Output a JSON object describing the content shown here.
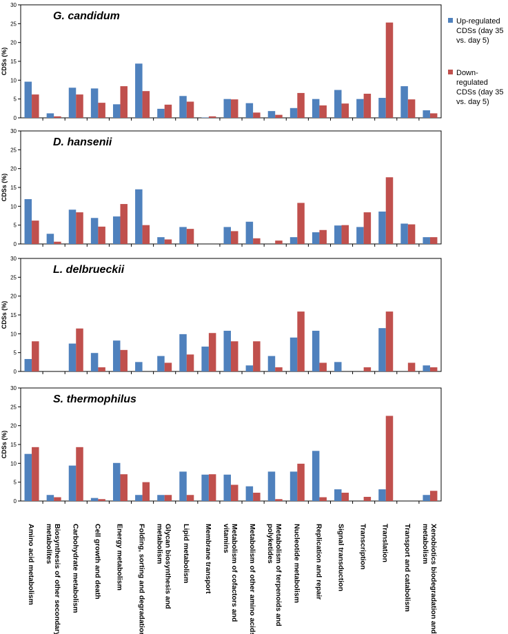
{
  "colors": {
    "up": "#4F81BD",
    "down": "#C0504D"
  },
  "chart_data": {
    "type": "bar",
    "ylabel": "CDSs (%)",
    "ylim": [
      0,
      30
    ],
    "yticks": [
      0,
      5,
      10,
      15,
      20,
      25,
      30
    ],
    "legend": {
      "position": "right of top panel",
      "entries": [
        [
          "Up-regulated",
          "CDSs (day 35",
          "vs. day 5)"
        ],
        [
          "Down-",
          "regulated",
          "CDSs (day 35",
          "vs. day 5)"
        ]
      ]
    },
    "categories": [
      [
        "Amino acid metabolism"
      ],
      [
        "Biosynthesis of other secondary",
        "metabolites"
      ],
      [
        "Carbohydrate metabolism"
      ],
      [
        "Cell growth and death"
      ],
      [
        "Energy metabolism"
      ],
      [
        "Folding, sorting and degradation"
      ],
      [
        "Glycan biosynthesis and",
        "metabolism"
      ],
      [
        "Lipid metabolism"
      ],
      [
        "Membrane transport"
      ],
      [
        "Metabolism of cofactors and",
        "vitamins"
      ],
      [
        "Metabolism of other amino acids"
      ],
      [
        "Metabolism of terpenoids and",
        "polyketides"
      ],
      [
        "Nucleotide metabolism"
      ],
      [
        "Replication and repair"
      ],
      [
        "Signal transduction"
      ],
      [
        "Transcription"
      ],
      [
        "Translation"
      ],
      [
        "Transport and catabolism"
      ],
      [
        "Xenobiotics biodegradation and",
        "metabolism"
      ]
    ],
    "panels": [
      {
        "title": "G. candidum",
        "series": [
          {
            "name": "Up-regulated CDSs (day 35 vs. day 5)",
            "values": [
              9.6,
              1.2,
              8.0,
              7.8,
              3.6,
              14.4,
              2.4,
              5.8,
              0.1,
              5.0,
              3.9,
              1.8,
              2.6,
              5.0,
              7.4,
              5.0,
              5.3,
              8.4,
              2.0
            ]
          },
          {
            "name": "Down-regulated CDSs (day 35 vs. day 5)",
            "values": [
              6.2,
              0.4,
              6.2,
              4.0,
              8.4,
              7.1,
              3.5,
              4.3,
              0.4,
              4.9,
              1.4,
              0.8,
              6.6,
              3.3,
              3.8,
              6.4,
              25.3,
              4.9,
              1.2
            ]
          }
        ]
      },
      {
        "title": "D. hansenii",
        "series": [
          {
            "name": "Up-regulated CDSs (day 35 vs. day 5)",
            "values": [
              11.9,
              2.7,
              9.1,
              6.9,
              7.3,
              14.5,
              1.8,
              4.5,
              0,
              4.5,
              5.9,
              0,
              1.8,
              3.1,
              4.9,
              4.5,
              8.6,
              5.4,
              1.8
            ]
          },
          {
            "name": "Down-regulated CDSs (day 35 vs. day 5)",
            "values": [
              6.2,
              0.6,
              8.4,
              4.6,
              10.6,
              5.0,
              1.2,
              4.0,
              0,
              3.4,
              1.5,
              0.9,
              10.9,
              3.7,
              5.0,
              8.4,
              17.7,
              5.2,
              1.8
            ]
          }
        ]
      },
      {
        "title": "L. delbrueckii",
        "series": [
          {
            "name": "Up-regulated CDSs (day 35 vs. day 5)",
            "values": [
              3.3,
              0,
              7.4,
              4.9,
              8.2,
              2.5,
              4.1,
              9.9,
              6.6,
              10.8,
              1.6,
              4.1,
              9.0,
              10.8,
              2.5,
              0,
              11.5,
              0,
              1.6
            ]
          },
          {
            "name": "Down-regulated CDSs (day 35 vs. day 5)",
            "values": [
              8.0,
              0,
              11.4,
              1.1,
              5.7,
              0,
              2.3,
              4.5,
              10.2,
              8.0,
              8.0,
              1.1,
              15.9,
              2.3,
              0,
              1.1,
              15.9,
              2.3,
              1.1
            ]
          }
        ]
      },
      {
        "title": "S. thermophilus",
        "series": [
          {
            "name": "Up-regulated CDSs (day 35 vs. day 5)",
            "values": [
              12.5,
              1.6,
              9.4,
              0.8,
              10.1,
              1.6,
              1.6,
              7.8,
              7.0,
              7.0,
              3.9,
              7.8,
              7.8,
              13.3,
              3.1,
              0,
              3.1,
              0,
              1.6
            ]
          },
          {
            "name": "Down-regulated CDSs (day 35 vs. day 5)",
            "values": [
              14.3,
              1.0,
              14.3,
              0.5,
              7.1,
              5.0,
              1.6,
              1.6,
              7.1,
              4.3,
              2.2,
              0.5,
              9.9,
              1.0,
              2.2,
              1.1,
              22.6,
              0,
              2.7
            ]
          }
        ]
      }
    ]
  }
}
